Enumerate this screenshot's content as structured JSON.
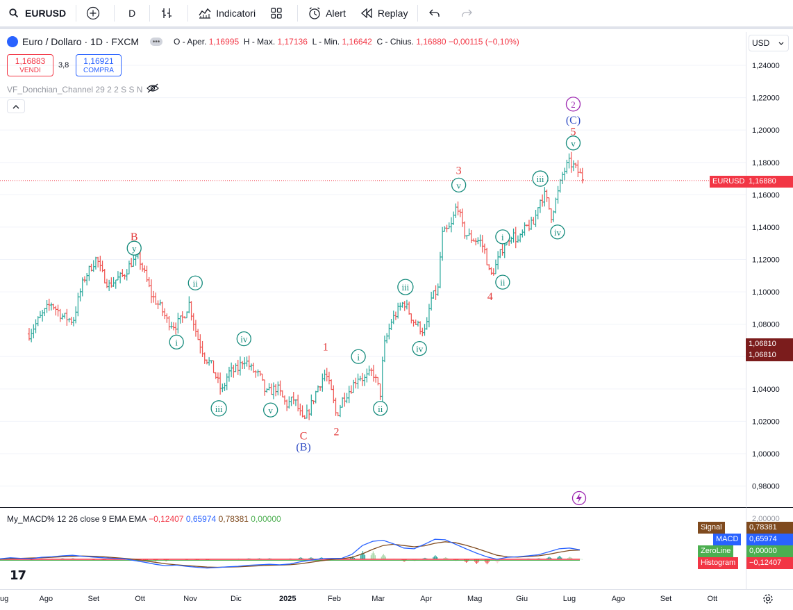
{
  "toolbar": {
    "symbol": "EURUSD",
    "interval": "D",
    "indicators": "Indicatori",
    "alert": "Alert",
    "replay": "Replay"
  },
  "legend": {
    "title": "Euro / Dollaro · 1D · FXCM",
    "open_label": "O - Aper.",
    "open": "1,16995",
    "high_label": "H - Max.",
    "high": "1,17136",
    "low_label": "L - Min.",
    "low": "1,16642",
    "close_label": "C - Chius.",
    "close": "1,16880",
    "change": "−0,00115 (−0,10%)"
  },
  "trade": {
    "sell_price": "1,16883",
    "sell_label": "VENDI",
    "spread": "3,8",
    "buy_price": "1,16921",
    "buy_label": "COMPRA"
  },
  "indicator_name": "VF_Donchian_Channel 29 2 2 S S N",
  "currency": "USD",
  "macd_legend": {
    "name": "My_MACD% 12 26 close 9 EMA EMA",
    "v1": "−0,12407",
    "v2": "0,65974",
    "v3": "0,78381",
    "v4": "0,00000"
  },
  "price_tags": {
    "symbol": "EURUSD",
    "current": "1,16880",
    "donchian_a": "1,06810",
    "donchian_b": "1,06810"
  },
  "macd_tags": [
    {
      "name": "Signal",
      "value": "0,78381",
      "color": "#7f4a1e"
    },
    {
      "name": "MACD",
      "value": "0,65974",
      "color": "#2962ff"
    },
    {
      "name": "ZeroLine",
      "value": "0,00000",
      "color": "#4caf50"
    },
    {
      "name": "Histogram",
      "value": "−0,12407",
      "color": "#f23645"
    }
  ],
  "colors": {
    "up": "#26a69a",
    "down": "#ef5350",
    "wave_green": "#138a7b",
    "wave_red": "#e23a3a",
    "wave_blue": "#2f4cc4",
    "wave_purple": "#9c27b0"
  },
  "chart_data": {
    "type": "candlestick",
    "symbol": "EURUSD",
    "interval": "1D",
    "y_range": [
      0.97,
      1.25
    ],
    "y_ticks": [
      "1,24000",
      "1,22000",
      "1,20000",
      "1,18000",
      "1,16000",
      "1,14000",
      "1,12000",
      "1,10000",
      "1,08000",
      "1,06000",
      "1,04000",
      "1,02000",
      "1,00000",
      "0,98000"
    ],
    "x_ticks": [
      "ug",
      "Ago",
      "Set",
      "Ott",
      "Nov",
      "Dic",
      "2025",
      "Feb",
      "Mar",
      "Apr",
      "Mag",
      "Giu",
      "Lug",
      "Ago",
      "Set",
      "Ott"
    ],
    "close_path": [
      [
        "2024-07-22",
        1.074
      ],
      [
        "2024-07-29",
        1.084
      ],
      [
        "2024-08-05",
        1.093
      ],
      [
        "2024-08-12",
        1.085
      ],
      [
        "2024-08-19",
        1.082
      ],
      [
        "2024-08-23",
        1.098
      ],
      [
        "2024-08-26",
        1.108
      ],
      [
        "2024-09-01",
        1.118
      ],
      [
        "2024-09-03",
        1.121
      ],
      [
        "2024-09-06",
        1.112
      ],
      [
        "2024-09-11",
        1.104
      ],
      [
        "2024-09-16",
        1.108
      ],
      [
        "2024-09-20",
        1.11
      ],
      [
        "2024-09-25",
        1.118
      ],
      [
        "2024-09-30",
        1.121
      ],
      [
        "2024-10-04",
        1.11
      ],
      [
        "2024-10-08",
        1.098
      ],
      [
        "2024-10-14",
        1.09
      ],
      [
        "2024-10-18",
        1.082
      ],
      [
        "2024-10-23",
        1.079
      ],
      [
        "2024-10-28",
        1.084
      ],
      [
        "2024-11-01",
        1.093
      ],
      [
        "2024-11-06",
        1.073
      ],
      [
        "2024-11-11",
        1.06
      ],
      [
        "2024-11-15",
        1.055
      ],
      [
        "2024-11-22",
        1.038
      ],
      [
        "2024-11-26",
        1.05
      ],
      [
        "2024-12-02",
        1.052
      ],
      [
        "2024-12-06",
        1.059
      ],
      [
        "2024-12-11",
        1.052
      ],
      [
        "2024-12-16",
        1.048
      ],
      [
        "2024-12-20",
        1.037
      ],
      [
        "2024-12-27",
        1.041
      ],
      [
        "2025-01-02",
        1.03
      ],
      [
        "2025-01-07",
        1.034
      ],
      [
        "2025-01-13",
        1.019
      ],
      [
        "2025-01-17",
        1.028
      ],
      [
        "2025-01-22",
        1.041
      ],
      [
        "2025-01-27",
        1.05
      ],
      [
        "2025-01-31",
        1.037
      ],
      [
        "2025-02-03",
        1.023
      ],
      [
        "2025-02-07",
        1.034
      ],
      [
        "2025-02-12",
        1.04
      ],
      [
        "2025-02-17",
        1.048
      ],
      [
        "2025-02-21",
        1.046
      ],
      [
        "2025-02-26",
        1.051
      ],
      [
        "2025-03-03",
        1.037
      ],
      [
        "2025-03-05",
        1.065
      ],
      [
        "2025-03-10",
        1.082
      ],
      [
        "2025-03-14",
        1.088
      ],
      [
        "2025-03-18",
        1.094
      ],
      [
        "2025-03-24",
        1.082
      ],
      [
        "2025-03-28",
        1.078
      ],
      [
        "2025-04-01",
        1.075
      ],
      [
        "2025-04-04",
        1.095
      ],
      [
        "2025-04-09",
        1.102
      ],
      [
        "2025-04-11",
        1.135
      ],
      [
        "2025-04-17",
        1.14
      ],
      [
        "2025-04-21",
        1.155
      ],
      [
        "2025-04-25",
        1.137
      ],
      [
        "2025-04-30",
        1.133
      ],
      [
        "2025-05-06",
        1.131
      ],
      [
        "2025-05-09",
        1.124
      ],
      [
        "2025-05-12",
        1.109
      ],
      [
        "2025-05-16",
        1.117
      ],
      [
        "2025-05-21",
        1.13
      ],
      [
        "2025-05-26",
        1.136
      ],
      [
        "2025-05-30",
        1.131
      ],
      [
        "2025-06-04",
        1.14
      ],
      [
        "2025-06-09",
        1.142
      ],
      [
        "2025-06-12",
        1.156
      ],
      [
        "2025-06-16",
        1.16
      ],
      [
        "2025-06-20",
        1.147
      ],
      [
        "2025-06-24",
        1.16
      ],
      [
        "2025-06-27",
        1.172
      ],
      [
        "2025-07-01",
        1.18
      ],
      [
        "2025-07-04",
        1.178
      ],
      [
        "2025-07-08",
        1.173
      ],
      [
        "2025-07-11",
        1.169
      ]
    ],
    "wave_labels": [
      {
        "text": "y",
        "style": "circle",
        "color": "green",
        "date": "2024-09-27",
        "price": 1.127
      },
      {
        "text": "B",
        "style": "plain",
        "color": "red",
        "date": "2024-09-27",
        "price": 1.134
      },
      {
        "text": "i",
        "style": "circle",
        "color": "green",
        "date": "2024-10-24",
        "price": 1.069
      },
      {
        "text": "ii",
        "style": "circle",
        "color": "green",
        "date": "2024-11-05",
        "price": 1.1055
      },
      {
        "text": "iii",
        "style": "circle",
        "color": "green",
        "date": "2024-11-20",
        "price": 1.028
      },
      {
        "text": "iv",
        "style": "circle",
        "color": "green",
        "date": "2024-12-06",
        "price": 1.071
      },
      {
        "text": "v",
        "style": "circle",
        "color": "green",
        "date": "2024-12-23",
        "price": 1.027
      },
      {
        "text": "C",
        "style": "plain",
        "color": "red",
        "date": "2025-01-13",
        "price": 1.011
      },
      {
        "text": "(B)",
        "style": "plain",
        "color": "blue",
        "date": "2025-01-13",
        "price": 1.004
      },
      {
        "text": "1",
        "style": "plain",
        "color": "red",
        "date": "2025-01-27",
        "price": 1.066
      },
      {
        "text": "2",
        "style": "plain",
        "color": "red",
        "date": "2025-02-03",
        "price": 1.0135
      },
      {
        "text": "i",
        "style": "circle",
        "color": "green",
        "date": "2025-02-17",
        "price": 1.06
      },
      {
        "text": "ii",
        "style": "circle",
        "color": "green",
        "date": "2025-03-03",
        "price": 1.028
      },
      {
        "text": "iii",
        "style": "circle",
        "color": "green",
        "date": "2025-03-19",
        "price": 1.103
      },
      {
        "text": "iv",
        "style": "circle",
        "color": "green",
        "date": "2025-03-28",
        "price": 1.065
      },
      {
        "text": "v",
        "style": "circle",
        "color": "green",
        "date": "2025-04-22",
        "price": 1.166
      },
      {
        "text": "3",
        "style": "plain",
        "color": "red",
        "date": "2025-04-22",
        "price": 1.175
      },
      {
        "text": "i",
        "style": "circle",
        "color": "green",
        "date": "2025-05-20",
        "price": 1.134
      },
      {
        "text": "ii",
        "style": "circle",
        "color": "green",
        "date": "2025-05-20",
        "price": 1.106
      },
      {
        "text": "4",
        "style": "plain",
        "color": "red",
        "date": "2025-05-12",
        "price": 1.097
      },
      {
        "text": "iii",
        "style": "circle",
        "color": "green",
        "date": "2025-06-13",
        "price": 1.17
      },
      {
        "text": "iv",
        "style": "circle",
        "color": "green",
        "date": "2025-06-24",
        "price": 1.137
      },
      {
        "text": "v",
        "style": "circle",
        "color": "green",
        "date": "2025-07-04",
        "price": 1.192
      },
      {
        "text": "5",
        "style": "plain",
        "color": "red",
        "date": "2025-07-04",
        "price": 1.199
      },
      {
        "text": "(C)",
        "style": "plain",
        "color": "blue",
        "date": "2025-07-04",
        "price": 1.206
      },
      {
        "text": "2",
        "style": "circle",
        "color": "purple",
        "date": "2025-07-04",
        "price": 1.216
      }
    ],
    "macd": {
      "macd_line": [
        0.02,
        0.06,
        0.04,
        0.02,
        0.08,
        0.1,
        0.14,
        0.16,
        0.12,
        0.09,
        0.06,
        0.04,
        0.02,
        -0.05,
        -0.12,
        -0.2,
        -0.26,
        -0.23,
        -0.28,
        -0.32,
        -0.35,
        -0.33,
        -0.3,
        -0.28,
        -0.24,
        -0.22,
        -0.2,
        -0.22,
        -0.19,
        -0.1,
        -0.04,
        0.02,
        0.04,
        0.04,
        0.2,
        0.55,
        0.72,
        0.76,
        0.62,
        0.45,
        0.42,
        0.6,
        0.8,
        0.78,
        0.6,
        0.42,
        0.25,
        0.1,
        0.0,
        0.08,
        0.1,
        0.14,
        0.18,
        0.3,
        0.42,
        0.45,
        0.38
      ],
      "signal_line": [
        0.0,
        0.02,
        0.04,
        0.05,
        0.06,
        0.08,
        0.1,
        0.12,
        0.13,
        0.12,
        0.1,
        0.07,
        0.04,
        0.0,
        -0.06,
        -0.12,
        -0.18,
        -0.22,
        -0.25,
        -0.28,
        -0.31,
        -0.32,
        -0.31,
        -0.3,
        -0.28,
        -0.26,
        -0.24,
        -0.23,
        -0.22,
        -0.18,
        -0.12,
        -0.06,
        -0.01,
        0.02,
        0.08,
        0.22,
        0.4,
        0.55,
        0.6,
        0.55,
        0.5,
        0.54,
        0.64,
        0.7,
        0.66,
        0.56,
        0.44,
        0.3,
        0.16,
        0.1,
        0.09,
        0.11,
        0.14,
        0.2,
        0.28,
        0.35,
        0.37
      ],
      "histogram": [
        0.02,
        0.04,
        0.0,
        -0.03,
        0.02,
        0.02,
        0.04,
        0.04,
        -0.01,
        -0.03,
        -0.04,
        -0.03,
        -0.02,
        -0.05,
        -0.06,
        -0.08,
        -0.08,
        -0.01,
        -0.03,
        -0.04,
        -0.04,
        -0.01,
        0.01,
        0.02,
        0.04,
        0.04,
        0.04,
        0.01,
        0.03,
        0.08,
        0.08,
        0.08,
        0.05,
        0.02,
        0.12,
        0.33,
        0.32,
        0.21,
        0.02,
        -0.1,
        -0.08,
        0.06,
        0.16,
        0.08,
        -0.06,
        -0.14,
        -0.19,
        -0.2,
        -0.16,
        -0.02,
        0.01,
        0.03,
        0.04,
        0.1,
        0.14,
        0.1,
        0.01
      ],
      "y_range": [
        -0.6,
        1.1
      ]
    }
  }
}
